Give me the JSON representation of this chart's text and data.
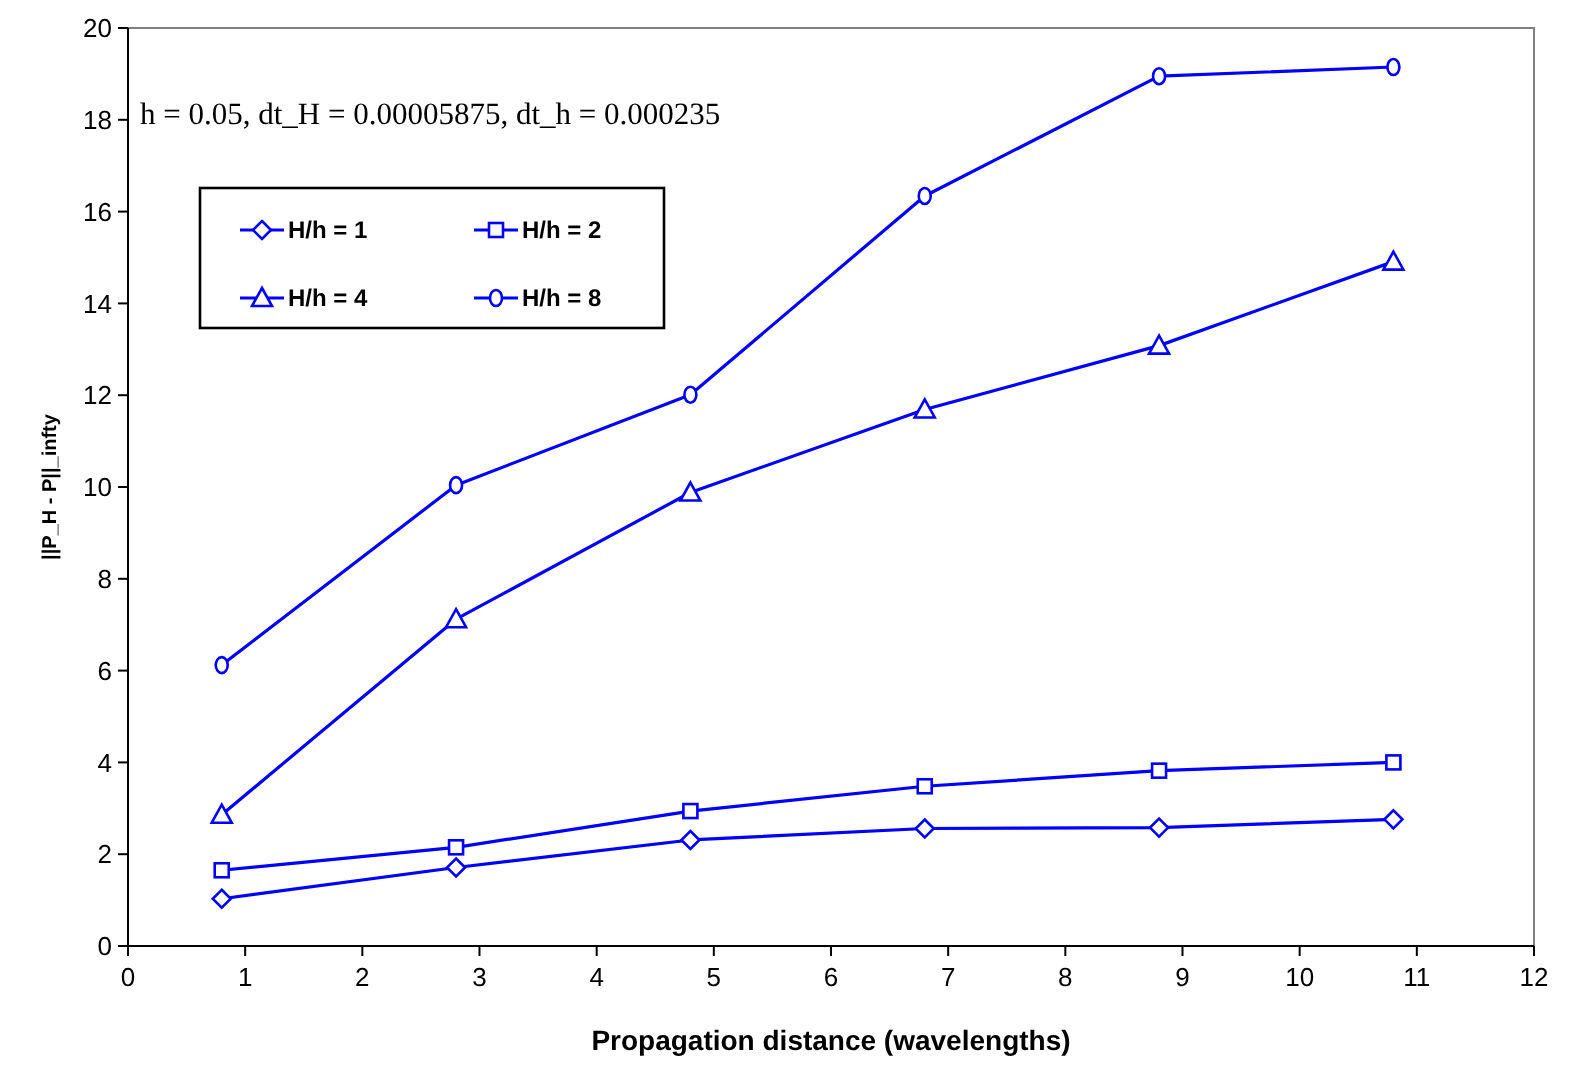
{
  "chart_data": {
    "type": "line",
    "xlabel": "Propagation distance (wavelengths)",
    "ylabel": "||P_H - P||_infty",
    "annotations": [
      "h = 0.05, dt_H = 0.00005875, dt_h = 0.000235"
    ],
    "x": [
      0.8,
      2.8,
      4.8,
      6.8,
      8.8,
      10.8
    ],
    "series": [
      {
        "name": "H/h = 1",
        "color": "#0000ff",
        "marker": "diamond",
        "values": [
          1.03,
          1.71,
          2.31,
          2.56,
          2.58,
          2.76
        ]
      },
      {
        "name": "H/h = 2",
        "color": "#0000ff",
        "marker": "square",
        "values": [
          1.65,
          2.15,
          2.94,
          3.48,
          3.82,
          4.0
        ]
      },
      {
        "name": "H/h = 4",
        "color": "#0000ff",
        "marker": "triangle",
        "values": [
          2.86,
          7.12,
          9.88,
          11.69,
          13.08,
          14.91
        ]
      },
      {
        "name": "H/h = 8",
        "color": "#0000ff",
        "marker": "circle",
        "values": [
          6.12,
          10.04,
          12.01,
          16.34,
          18.95,
          19.15
        ]
      }
    ],
    "xlim": [
      0,
      12
    ],
    "xticks": [
      0,
      1,
      2,
      3,
      4,
      5,
      6,
      7,
      8,
      9,
      10,
      11,
      12
    ],
    "ylim": [
      0,
      20
    ],
    "yticks": [
      0,
      2,
      4,
      6,
      8,
      10,
      12,
      14,
      16,
      18,
      20
    ],
    "grid": false,
    "legend": "top left"
  }
}
